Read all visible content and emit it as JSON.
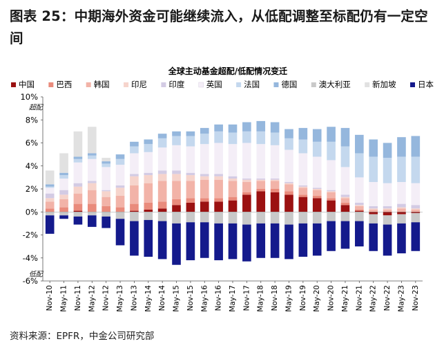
{
  "figure_title": "图表 25：中期海外资金可能继续流入，从低配调整至标配仍有一定空间",
  "source": "资料来源：EPFR，中金公司研究部",
  "chart_data": {
    "type": "bar",
    "stacked": true,
    "title": "全球主动基金超配/低配情况变迁",
    "annotations": [
      {
        "text": "超配",
        "x": "Sep-21",
        "y": 8.9
      },
      {
        "text": "低配",
        "x": "Jul-19",
        "y": -5.6
      }
    ],
    "legend_position": "top",
    "grid": false,
    "ylim": [
      -6,
      10
    ],
    "y_ticks": [
      "-6%",
      "-4%",
      "-2%",
      "0%",
      "2%",
      "4%",
      "6%",
      "8%",
      "10%"
    ],
    "x_tick_labels": [
      "Nov-10",
      "May-11",
      "Nov-11",
      "May-12",
      "Nov-12",
      "May-13",
      "Nov-13",
      "May-14",
      "Nov-14",
      "May-15",
      "Nov-15",
      "May-16",
      "Nov-16",
      "May-17",
      "Nov-17",
      "May-18",
      "Nov-18",
      "May-19",
      "Nov-19",
      "May-20",
      "Nov-20",
      "May-21",
      "Nov-21",
      "May-22",
      "Nov-22",
      "May-23",
      "Nov-23"
    ],
    "x": [
      "Nov-10",
      "May-11",
      "Nov-11",
      "May-12",
      "Nov-12",
      "May-13",
      "Nov-13",
      "May-14",
      "Nov-14",
      "May-15",
      "Nov-15",
      "May-16",
      "Nov-16",
      "May-17",
      "Nov-17",
      "May-18",
      "Nov-18",
      "May-19",
      "Nov-19",
      "May-20",
      "Nov-20",
      "May-21",
      "Nov-21",
      "May-22",
      "Nov-22",
      "May-23",
      "Nov-23"
    ],
    "series": [
      {
        "name": "中国",
        "color": "#9b1111",
        "values": [
          0.0,
          0.0,
          0.1,
          0.0,
          0.0,
          0.0,
          0.1,
          0.2,
          0.3,
          0.6,
          0.8,
          0.9,
          0.9,
          1.0,
          1.5,
          1.8,
          1.7,
          1.5,
          1.3,
          1.2,
          1.0,
          0.6,
          0.1,
          -0.2,
          -0.3,
          -0.2,
          -0.1
        ]
      },
      {
        "name": "巴西",
        "color": "#e98b7c",
        "values": [
          0.3,
          0.4,
          0.6,
          0.7,
          0.5,
          0.4,
          0.6,
          0.6,
          0.6,
          0.5,
          0.4,
          0.3,
          0.3,
          0.3,
          0.2,
          0.2,
          0.3,
          0.3,
          0.2,
          0.2,
          0.2,
          0.2,
          0.1,
          0.0,
          0.0,
          0.0,
          0.0
        ]
      },
      {
        "name": "韩国",
        "color": "#f2b3a8",
        "values": [
          0.6,
          0.7,
          0.9,
          1.2,
          0.8,
          1.0,
          1.6,
          1.7,
          1.8,
          1.6,
          1.5,
          1.6,
          1.6,
          1.4,
          0.9,
          0.7,
          0.7,
          0.6,
          0.6,
          0.5,
          0.5,
          0.4,
          0.3,
          0.2,
          0.2,
          0.3,
          0.2
        ]
      },
      {
        "name": "印尼",
        "color": "#f6d4cc",
        "values": [
          0.3,
          0.4,
          0.6,
          0.6,
          0.5,
          0.7,
          0.8,
          0.7,
          0.6,
          0.6,
          0.5,
          0.3,
          0.3,
          0.2,
          0.2,
          0.1,
          0.1,
          0.1,
          0.1,
          0.1,
          0.1,
          0.1,
          0.1,
          0.1,
          0.1,
          0.1,
          0.1
        ]
      },
      {
        "name": "印度",
        "color": "#d3cbe4",
        "values": [
          0.4,
          0.4,
          0.3,
          0.2,
          0.1,
          0.2,
          0.2,
          0.2,
          0.3,
          0.3,
          0.2,
          0.2,
          0.2,
          0.2,
          0.1,
          0.1,
          0.1,
          0.1,
          0.1,
          0.1,
          0.1,
          0.2,
          0.2,
          0.2,
          0.2,
          0.3,
          0.3
        ]
      },
      {
        "name": "英国",
        "color": "#f4eef7",
        "values": [
          0.5,
          1.0,
          1.8,
          1.9,
          2.0,
          1.8,
          1.8,
          1.8,
          2.0,
          2.2,
          2.3,
          2.6,
          2.7,
          2.8,
          3.1,
          3.0,
          2.9,
          2.8,
          2.8,
          2.7,
          2.6,
          2.4,
          2.2,
          2.1,
          2.0,
          1.9,
          1.9
        ]
      },
      {
        "name": "法国",
        "color": "#c4d8ee",
        "values": [
          0.1,
          0.3,
          0.3,
          0.3,
          0.3,
          0.5,
          0.6,
          0.7,
          0.8,
          0.8,
          0.9,
          0.9,
          1.0,
          1.0,
          1.0,
          1.1,
          1.1,
          1.0,
          1.2,
          1.3,
          1.6,
          1.8,
          2.1,
          2.2,
          2.2,
          2.2,
          2.3
        ]
      },
      {
        "name": "德国",
        "color": "#95b7dd",
        "values": [
          0.2,
          0.2,
          0.2,
          0.2,
          0.2,
          0.4,
          0.4,
          0.4,
          0.4,
          0.4,
          0.4,
          0.5,
          0.6,
          0.7,
          0.8,
          0.9,
          0.9,
          0.8,
          1.0,
          1.1,
          1.3,
          1.6,
          1.6,
          1.5,
          1.3,
          1.7,
          1.8
        ]
      },
      {
        "name": "澳大利亚",
        "color": "#c9c9c9",
        "values": [
          -0.3,
          -0.3,
          -0.4,
          -0.3,
          -0.4,
          -0.6,
          -0.8,
          -0.7,
          -0.8,
          -1.0,
          -0.9,
          -0.9,
          -1.0,
          -1.0,
          -1.1,
          -1.0,
          -1.0,
          -1.1,
          -1.0,
          -1.0,
          -0.8,
          -0.8,
          -0.8,
          -0.8,
          -0.8,
          -0.8,
          -0.8
        ]
      },
      {
        "name": "新加坡",
        "color": "#e1e1e1",
        "values": [
          1.2,
          1.7,
          2.2,
          2.3,
          0.3,
          0.0,
          0.0,
          0.0,
          0.0,
          0.0,
          0.0,
          0.0,
          0.0,
          0.0,
          0.0,
          0.0,
          0.0,
          0.0,
          0.0,
          0.0,
          0.0,
          0.0,
          0.0,
          0.0,
          0.0,
          0.0,
          0.0
        ]
      },
      {
        "name": "日本",
        "color": "#141a8c",
        "values": [
          -1.6,
          -0.3,
          -0.7,
          -1.0,
          -1.0,
          -2.3,
          -3.0,
          -3.2,
          -3.3,
          -3.6,
          -3.3,
          -3.1,
          -3.2,
          -3.1,
          -3.2,
          -3.0,
          -3.0,
          -3.0,
          -2.9,
          -2.8,
          -2.6,
          -2.4,
          -2.2,
          -2.4,
          -2.7,
          -2.6,
          -2.5
        ]
      }
    ]
  }
}
